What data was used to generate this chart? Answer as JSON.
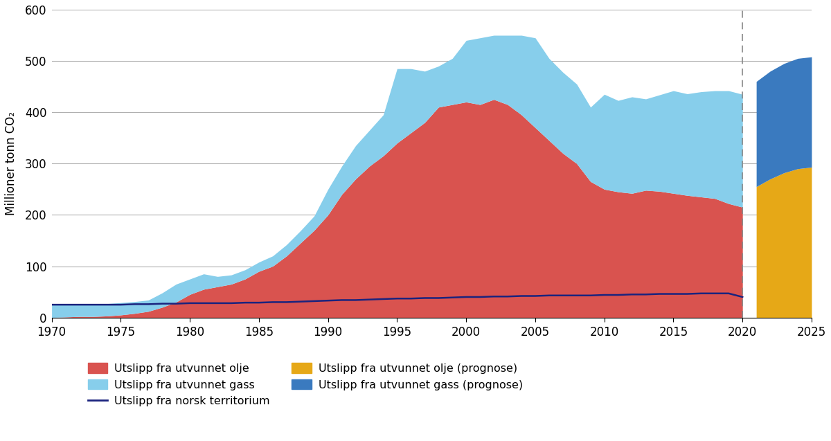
{
  "years_historical": [
    1970,
    1971,
    1972,
    1973,
    1974,
    1975,
    1976,
    1977,
    1978,
    1979,
    1980,
    1981,
    1982,
    1983,
    1984,
    1985,
    1986,
    1987,
    1988,
    1989,
    1990,
    1991,
    1992,
    1993,
    1994,
    1995,
    1996,
    1997,
    1998,
    1999,
    2000,
    2001,
    2002,
    2003,
    2004,
    2005,
    2006,
    2007,
    2008,
    2009,
    2010,
    2011,
    2012,
    2013,
    2014,
    2015,
    2016,
    2017,
    2018,
    2019,
    2020
  ],
  "oil_historical": [
    0,
    1,
    2,
    2,
    3,
    5,
    8,
    12,
    20,
    30,
    45,
    55,
    60,
    65,
    75,
    90,
    100,
    120,
    145,
    170,
    200,
    240,
    270,
    295,
    315,
    340,
    360,
    380,
    410,
    415,
    420,
    415,
    425,
    415,
    395,
    370,
    345,
    320,
    300,
    265,
    250,
    245,
    242,
    248,
    246,
    242,
    238,
    235,
    232,
    222,
    215
  ],
  "gas_historical": [
    25,
    25,
    25,
    24,
    24,
    24,
    23,
    22,
    28,
    35,
    30,
    30,
    20,
    18,
    18,
    18,
    20,
    22,
    24,
    28,
    50,
    55,
    65,
    70,
    80,
    145,
    125,
    100,
    80,
    90,
    120,
    130,
    125,
    135,
    155,
    175,
    160,
    158,
    155,
    145,
    185,
    178,
    188,
    178,
    188,
    200,
    198,
    205,
    210,
    220,
    220
  ],
  "territory_line": [
    25,
    25,
    25,
    25,
    25,
    25,
    26,
    26,
    27,
    27,
    28,
    28,
    28,
    28,
    29,
    29,
    30,
    30,
    31,
    32,
    33,
    34,
    34,
    35,
    36,
    37,
    37,
    38,
    38,
    39,
    40,
    40,
    41,
    41,
    42,
    42,
    43,
    43,
    43,
    43,
    44,
    44,
    45,
    45,
    46,
    46,
    46,
    47,
    47,
    47,
    40
  ],
  "years_forecast": [
    2021,
    2022,
    2023,
    2024,
    2025
  ],
  "oil_forecast": [
    255,
    270,
    282,
    290,
    293
  ],
  "gas_forecast": [
    205,
    210,
    213,
    215,
    215
  ],
  "color_oil": "#d9534f",
  "color_gas": "#87ceeb",
  "color_territory": "#1a237e",
  "color_oil_forecast": "#e6a817",
  "color_gas_forecast": "#3a7abf",
  "ylabel": "Millioner tonn CO₂",
  "ylim": [
    0,
    600
  ],
  "yticks": [
    0,
    100,
    200,
    300,
    400,
    500,
    600
  ],
  "xlim": [
    1970,
    2025
  ],
  "xticks": [
    1970,
    1975,
    1980,
    1985,
    1990,
    1995,
    2000,
    2005,
    2010,
    2015,
    2020,
    2025
  ],
  "vline_x": 2020,
  "legend_labels": [
    "Utslipp fra utvunnet olje",
    "Utslipp fra utvunnet gass",
    "Utslipp fra norsk territorium",
    "Utslipp fra utvunnet olje (prognose)",
    "Utslipp fra utvunnet gass (prognose)"
  ],
  "background_color": "#ffffff"
}
